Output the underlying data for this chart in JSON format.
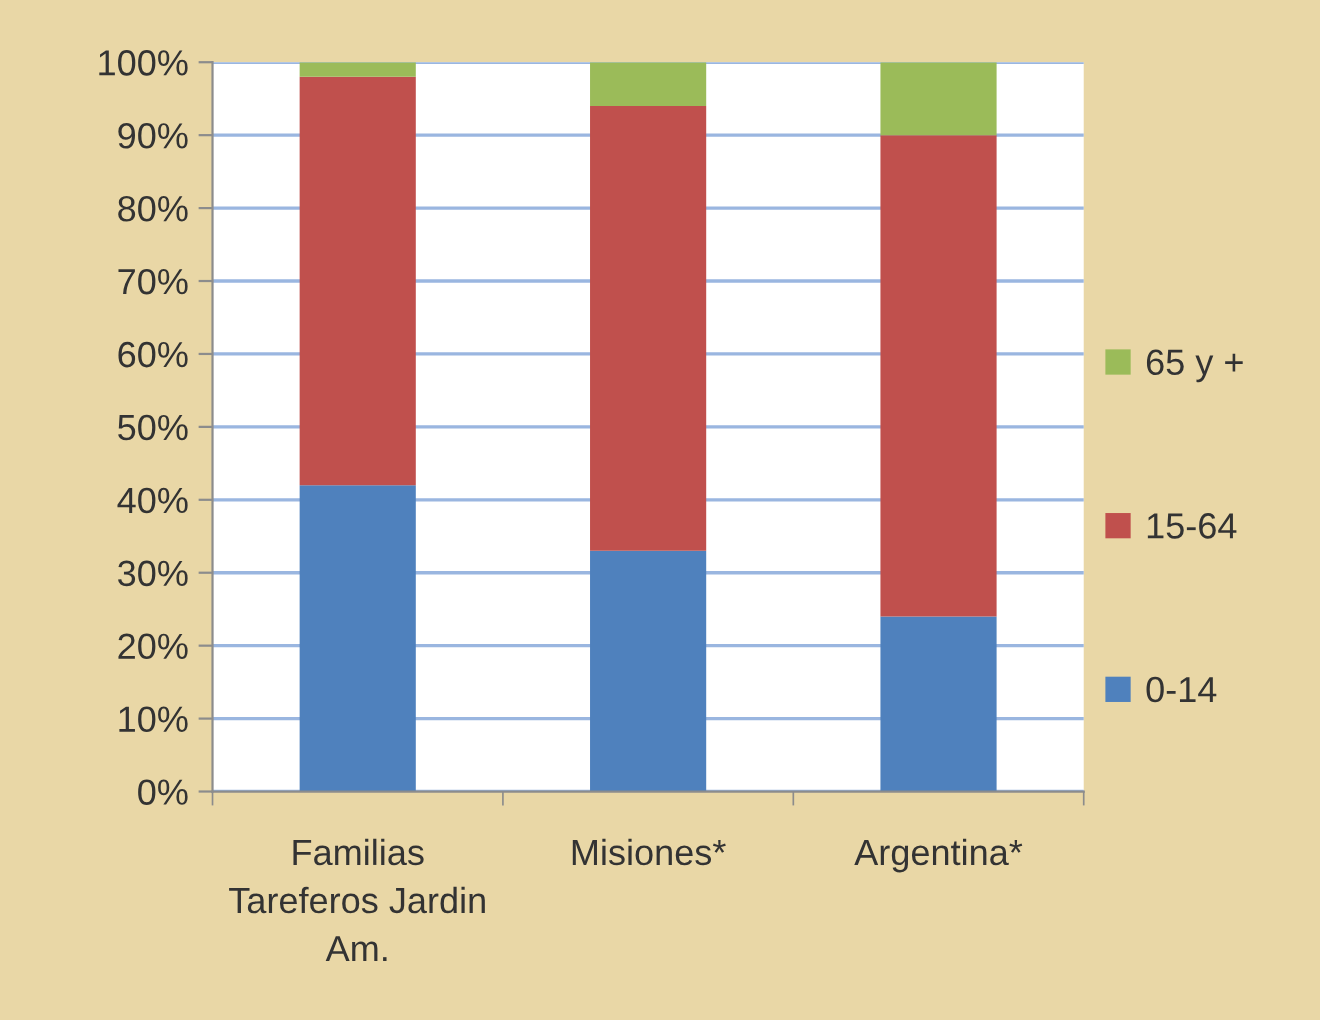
{
  "chart_data": {
    "type": "bar",
    "stacked": true,
    "categories": [
      "Familias\nTareferos Jardin\nAm.",
      "Misiones*",
      "Argentina*"
    ],
    "series": [
      {
        "name": "0-14",
        "color": "#4f81bd",
        "values": [
          42,
          33,
          24
        ]
      },
      {
        "name": "15-64",
        "color": "#c0504d",
        "values": [
          56,
          61,
          66
        ]
      },
      {
        "name": "65 y +",
        "color": "#9bbb59",
        "values": [
          2,
          6,
          10
        ]
      }
    ],
    "ylim": [
      0,
      100
    ],
    "yticks": [
      {
        "value": 0,
        "label": "0%"
      },
      {
        "value": 10,
        "label": "10%"
      },
      {
        "value": 20,
        "label": "20%"
      },
      {
        "value": 30,
        "label": "30%"
      },
      {
        "value": 40,
        "label": "40%"
      },
      {
        "value": 50,
        "label": "50%"
      },
      {
        "value": 60,
        "label": "60%"
      },
      {
        "value": 70,
        "label": "70%"
      },
      {
        "value": 80,
        "label": "80%"
      },
      {
        "value": 90,
        "label": "90%"
      },
      {
        "value": 100,
        "label": "100%"
      }
    ],
    "grid": "y",
    "legend": "right"
  }
}
